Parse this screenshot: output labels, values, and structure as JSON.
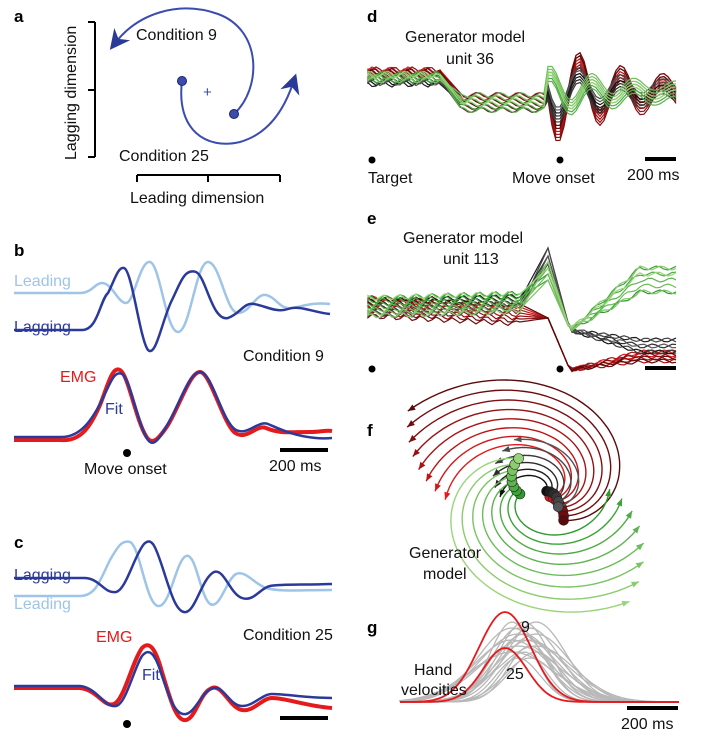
{
  "colors": {
    "leading": "#9ec4e8",
    "lagging": "#2b3a9a",
    "fit": "#2b3a9a",
    "emg": "#e41a1c",
    "red_conditions": "#8b0f12",
    "green_conditions": "#3aa83a",
    "dark_conditions": "#222222",
    "hand_velocity_other": "#b8b8b8",
    "scale_bar": "#000000"
  },
  "panels": {
    "a": {
      "label": "a",
      "condition_top": "Condition 9",
      "condition_bottom": "Condition 25",
      "y_axis_label": "Lagging dimension",
      "x_axis_label": "Leading dimension"
    },
    "b": {
      "label": "b",
      "leading": "Leading",
      "lagging": "Lagging",
      "emg": "EMG",
      "fit": "Fit",
      "condition": "Condition 9",
      "move_onset": "Move onset",
      "scale_bar": "200 ms"
    },
    "c": {
      "label": "c",
      "lagging": "Lagging",
      "leading": "Leading",
      "emg": "EMG",
      "fit": "Fit",
      "condition": "Condition 25"
    },
    "d": {
      "label": "d",
      "title_line1": "Generator model",
      "title_line2": "unit 36",
      "target": "Target",
      "move_onset": "Move onset",
      "scale_bar": "200 ms"
    },
    "e": {
      "label": "e",
      "title_line1": "Generator model",
      "title_line2": "unit 113"
    },
    "f": {
      "label": "f",
      "title_line1": "Generator",
      "title_line2": "model"
    },
    "g": {
      "label": "g",
      "label_9": "9",
      "label_25": "25",
      "hand_line1": "Hand",
      "hand_line2": "velocities",
      "scale_bar": "200 ms"
    }
  }
}
